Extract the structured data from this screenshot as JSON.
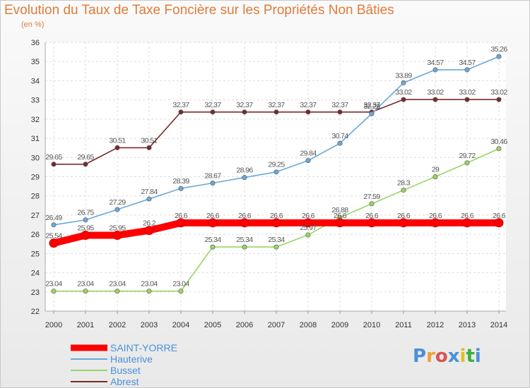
{
  "title": "Evolution du Taux de Taxe Foncière sur les Propriétés Non Bâties",
  "subtitle": "(en %)",
  "logo": {
    "text": "Proxiti",
    "letter_colors": [
      "#4a90d9",
      "#f0a030",
      "#d9534f",
      "#4a90d9",
      "#e0c020",
      "#3ab03a",
      "#4a90d9"
    ]
  },
  "chart_data": {
    "type": "line",
    "title": "Evolution du Taux de Taxe Foncière sur les Propriétés Non Bâties",
    "ylabel": "(en %)",
    "x": [
      "2000",
      "2001",
      "2002",
      "2003",
      "2004",
      "2005",
      "2006",
      "2007",
      "2008",
      "2009",
      "2010",
      "2011",
      "2012",
      "2013",
      "2014"
    ],
    "ylim": [
      22,
      36
    ],
    "yticks": [
      "22",
      "23",
      "24",
      "25",
      "26",
      "27",
      "28",
      "29",
      "30",
      "31",
      "32",
      "33",
      "34",
      "35",
      "36"
    ],
    "grid": true,
    "legend_position": "bottom-left",
    "series": [
      {
        "name": "SAINT-YORRE",
        "color": "#ff0000",
        "values": [
          25.54,
          25.95,
          25.95,
          26.2,
          26.6,
          26.6,
          26.6,
          26.6,
          26.6,
          26.6,
          26.6,
          26.6,
          26.6,
          26.6,
          26.6
        ],
        "labels": [
          "25.54",
          "25.95",
          "25.95",
          "26.2",
          "26.6",
          "26.6",
          "26.6",
          "26.6",
          "26.6",
          "26.6",
          "26.6",
          "26.6",
          "26.6",
          "26.6",
          "26.6"
        ]
      },
      {
        "name": "Hauterive",
        "color": "#6aa8dc",
        "values": [
          26.49,
          26.75,
          27.29,
          27.84,
          28.39,
          28.67,
          28.96,
          29.25,
          29.84,
          30.74,
          32.28,
          33.89,
          34.57,
          34.57,
          35.26
        ],
        "labels": [
          "26.49",
          "26.75",
          "27.29",
          "27.84",
          "28.39",
          "28.67",
          "28.96",
          "29.25",
          "29.84",
          "30.74",
          "32.28",
          "33.89",
          "34.57",
          "34.57",
          "35.26"
        ]
      },
      {
        "name": "Busset",
        "color": "#99d466",
        "values": [
          23.04,
          23.04,
          23.04,
          23.04,
          23.04,
          25.34,
          25.34,
          25.34,
          25.97,
          26.88,
          27.59,
          28.3,
          29,
          29.72,
          30.46
        ],
        "labels": [
          "23.04",
          "23.04",
          "23.04",
          "23.04",
          "23.04",
          "25.34",
          "25.34",
          "25.34",
          "25.97",
          "26.88",
          "27.59",
          "28.3",
          "29",
          "29.72",
          "30.46"
        ]
      },
      {
        "name": "Abrest",
        "color": "#7a2a2a",
        "values": [
          29.65,
          29.65,
          30.51,
          30.51,
          32.37,
          32.37,
          32.37,
          32.37,
          32.37,
          32.37,
          32.37,
          33.02,
          33.02,
          33.02,
          33.02
        ],
        "labels": [
          "29.65",
          "29.65",
          "30.51",
          "30.51",
          "32.37",
          "32.37",
          "32.37",
          "32.37",
          "32.37",
          "32.37",
          "32.37",
          "33.02",
          "33.02",
          "33.02",
          "33.02"
        ]
      }
    ]
  }
}
